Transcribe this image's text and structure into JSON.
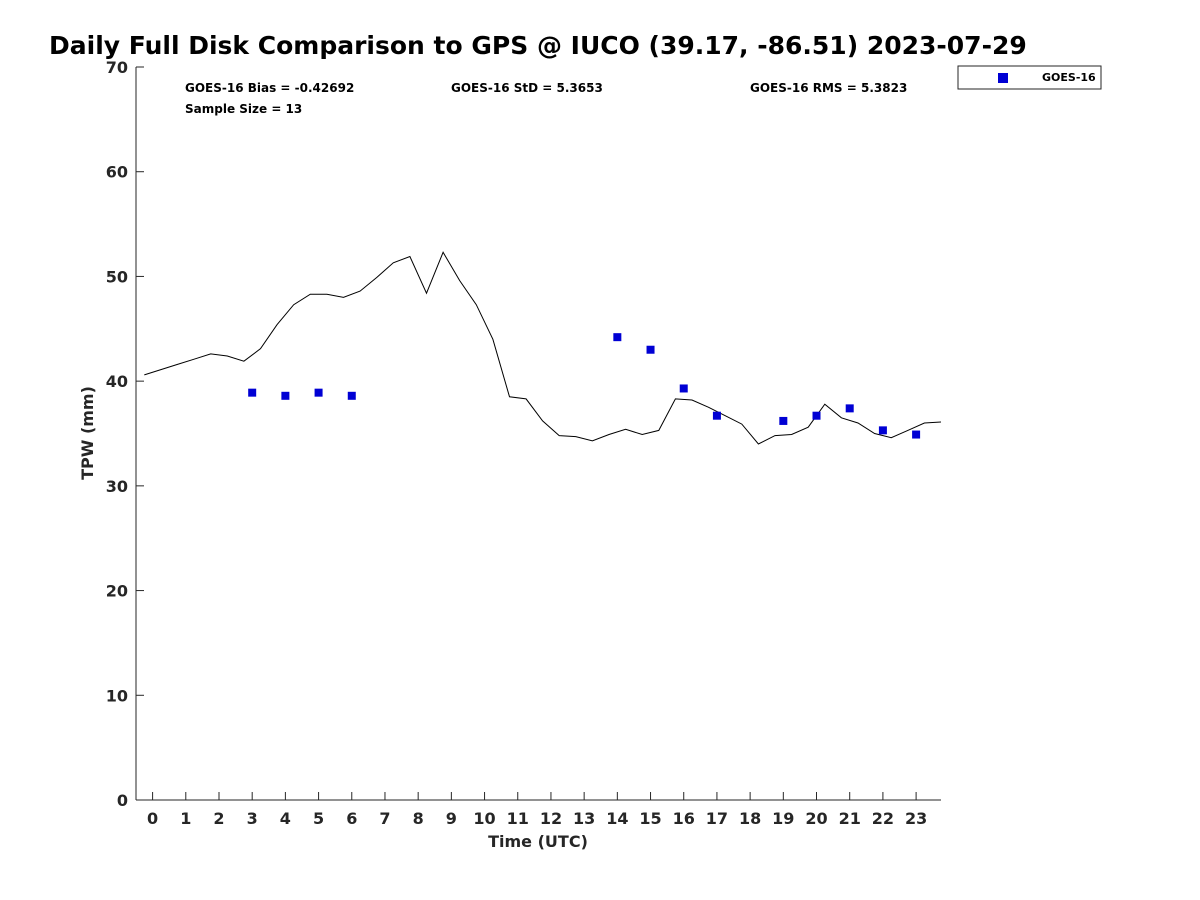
{
  "chart_data": {
    "type": "line",
    "title": "Daily Full Disk Comparison to GPS @ IUCO (39.17, -86.51) 2023-07-29",
    "xlabel": "Time (UTC)",
    "ylabel": "TPW (mm)",
    "xlim": [
      -0.5,
      23.75
    ],
    "ylim": [
      0,
      70
    ],
    "x_ticks": [
      0,
      1,
      2,
      3,
      4,
      5,
      6,
      7,
      8,
      9,
      10,
      11,
      12,
      13,
      14,
      15,
      16,
      17,
      18,
      19,
      20,
      21,
      22,
      23
    ],
    "y_ticks": [
      0,
      10,
      20,
      30,
      40,
      50,
      60,
      70
    ],
    "grid": false,
    "legend_position": "top-right outside",
    "stats": {
      "bias": "GOES-16 Bias = -0.42692",
      "std": "GOES-16 StD = 5.3653",
      "rms": "GOES-16 RMS = 5.3823",
      "sample": "Sample Size = 13"
    },
    "series": [
      {
        "type": "line",
        "color": "#000000",
        "x": [
          -0.25,
          0.25,
          0.75,
          1.25,
          1.75,
          2.25,
          2.75,
          3.25,
          3.75,
          4.25,
          4.75,
          5.25,
          5.75,
          6.25,
          6.75,
          7.25,
          7.75,
          8.25,
          8.75,
          9.25,
          9.75,
          10.25,
          10.75,
          11.25,
          11.75,
          12.25,
          12.75,
          13.25,
          13.75,
          14.25,
          14.75,
          15.25,
          15.75,
          16.25,
          16.75,
          17.25,
          17.75,
          18.25,
          18.75,
          19.25,
          19.75,
          20.25,
          20.75,
          21.25,
          21.75,
          22.25,
          22.75,
          23.25,
          23.75
        ],
        "values": [
          40.6,
          41.1,
          41.6,
          42.1,
          42.6,
          42.4,
          41.9,
          43.1,
          45.4,
          47.3,
          48.3,
          48.3,
          48.0,
          48.6,
          49.9,
          51.3,
          51.9,
          48.4,
          52.3,
          49.6,
          47.3,
          44.0,
          38.5,
          38.3,
          36.2,
          34.8,
          34.7,
          34.3,
          34.9,
          35.4,
          34.9,
          35.3,
          38.3,
          38.2,
          37.5,
          36.7,
          35.9,
          34.0,
          34.8,
          34.9,
          35.6,
          37.8,
          36.5,
          36.0,
          35.0,
          34.6,
          35.3,
          36.0,
          36.1
        ]
      },
      {
        "name": "GOES-16",
        "type": "scatter",
        "marker": "square",
        "color": "#0000d4",
        "x": [
          3,
          4,
          5,
          6,
          14,
          15,
          16,
          17,
          19,
          20,
          21,
          22,
          23
        ],
        "values": [
          38.9,
          38.6,
          38.9,
          38.6,
          44.2,
          43.0,
          39.3,
          36.7,
          36.2,
          36.7,
          37.4,
          35.3,
          34.9
        ]
      }
    ]
  }
}
